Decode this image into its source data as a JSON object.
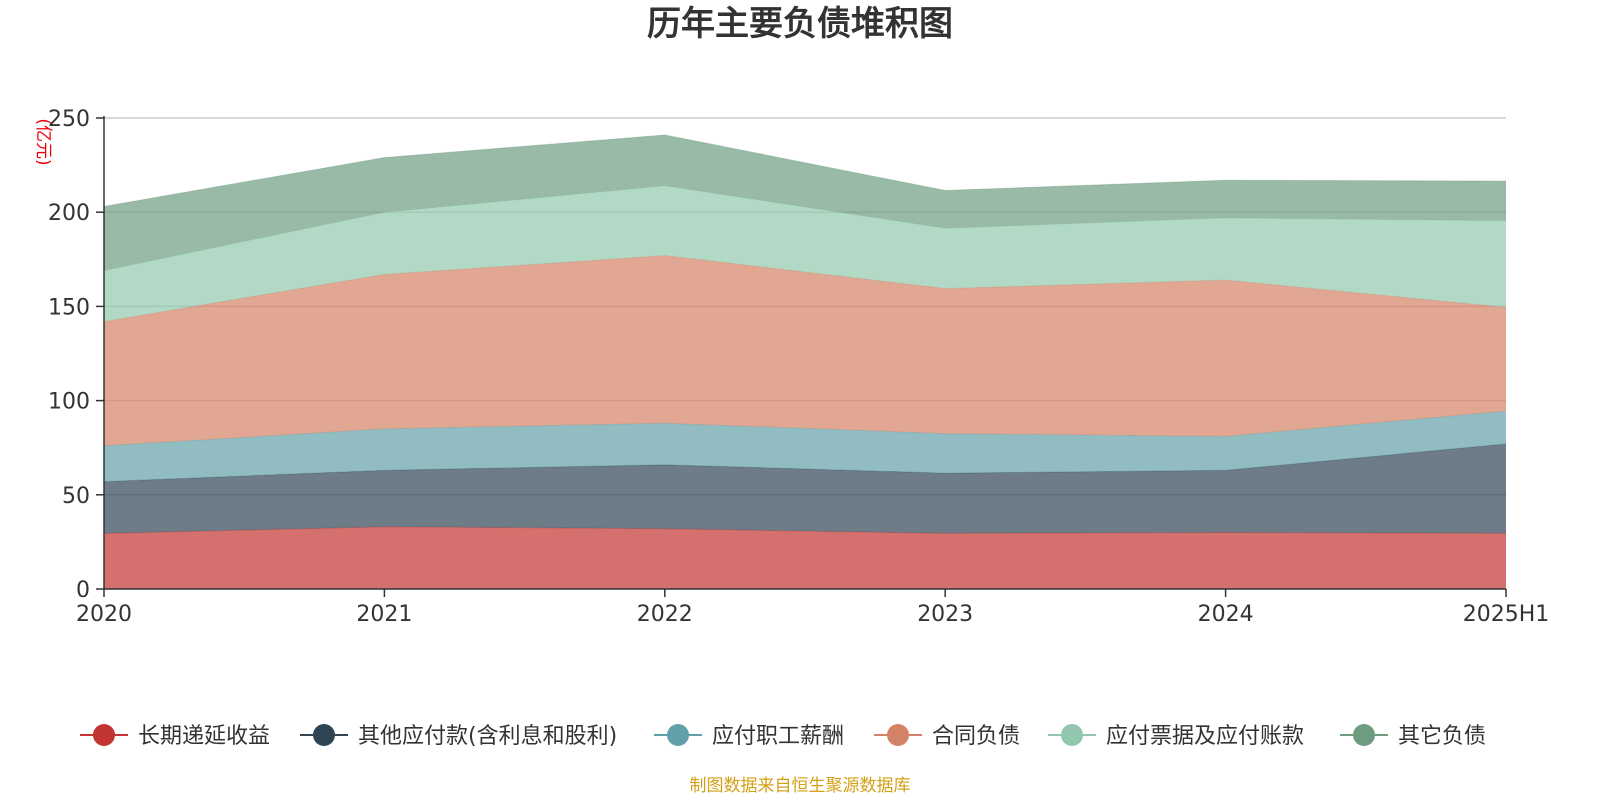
{
  "chart_data": {
    "type": "area",
    "stacked": true,
    "title": "历年主要负债堆积图",
    "ylabel": "(亿元)",
    "categories": [
      "2020",
      "2021",
      "2022",
      "2023",
      "2024",
      "2025H1"
    ],
    "ylim": [
      0,
      250
    ],
    "yticks": [
      "0",
      "50",
      "100",
      "150",
      "200",
      "250"
    ],
    "grid": true,
    "legend_position": "bottom",
    "series": [
      {
        "name": "长期递延收益",
        "color": "#c23531",
        "values": [
          29.5,
          33,
          32,
          29.5,
          30,
          29.5
        ]
      },
      {
        "name": "其他应付款(含利息和股利)",
        "color": "#2f4554",
        "values": [
          27.5,
          30,
          34,
          32,
          33,
          47.5
        ]
      },
      {
        "name": "应付职工薪酬",
        "color": "#61a0a8",
        "values": [
          19,
          22,
          22,
          21,
          18,
          17.5
        ]
      },
      {
        "name": "合同负债",
        "color": "#d48265",
        "values": [
          66,
          82,
          89,
          77,
          83,
          55
        ]
      },
      {
        "name": "应付票据及应付账款",
        "color": "#91c7ae",
        "values": [
          27,
          33,
          37,
          32,
          33,
          46
        ]
      },
      {
        "name": "其它负债",
        "color": "#6e9c80",
        "values": [
          34,
          29,
          27,
          20,
          20,
          21
        ]
      }
    ]
  },
  "source_note": "制图数据来自恒生聚源数据库"
}
